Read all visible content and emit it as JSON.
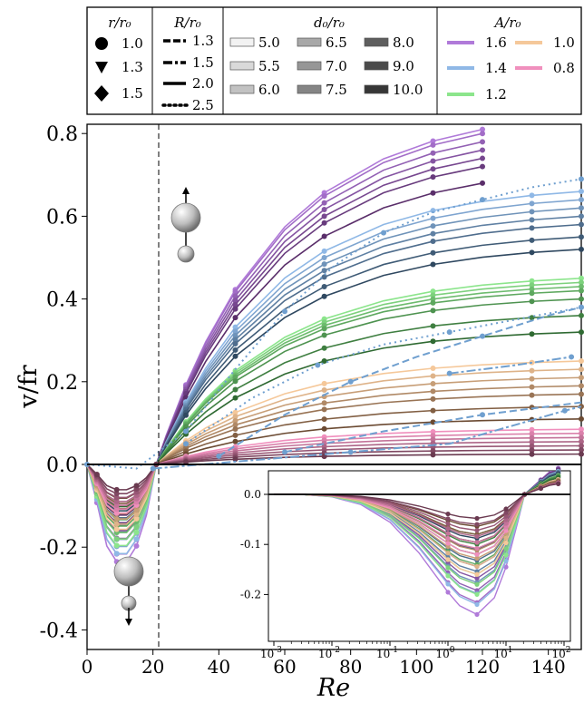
{
  "chart_data": {
    "type": "line",
    "xlabel": "Re",
    "ylabel": "v/fr",
    "xlim": [
      0,
      150
    ],
    "ylim": [
      -0.45,
      0.82
    ],
    "x_ticks": [
      0,
      20,
      40,
      60,
      80,
      100,
      120,
      140
    ],
    "y_ticks": [
      -0.4,
      -0.2,
      0.0,
      0.2,
      0.4,
      0.6,
      0.8
    ],
    "y_tick_labels": [
      "-0.4",
      "-0.2",
      "0.0",
      "0.2",
      "0.4",
      "0.6",
      "0.8"
    ],
    "critical_re": 21,
    "groups": [
      {
        "name": "1.6",
        "color": "#b07ad9",
        "dark": "#5a2e6a",
        "peaks": [
          0.81,
          0.8,
          0.78,
          0.76,
          0.74,
          0.72,
          0.68
        ],
        "neg": -0.24
      },
      {
        "name": "1.4",
        "color": "#8fb8e6",
        "dark": "#2f4860",
        "peaks": [
          0.66,
          0.64,
          0.62,
          0.6,
          0.58,
          0.55,
          0.52
        ],
        "neg": -0.22
      },
      {
        "name": "1.2",
        "color": "#8ce58c",
        "dark": "#2f6a32",
        "peaks": [
          0.45,
          0.44,
          0.43,
          0.42,
          0.4,
          0.36,
          0.32
        ],
        "neg": -0.2
      },
      {
        "name": "1.0",
        "color": "#f5c89a",
        "dark": "#6b4a32",
        "peaks": [
          0.25,
          0.23,
          0.21,
          0.19,
          0.17,
          0.14,
          0.11
        ],
        "neg": -0.16
      },
      {
        "name": "0.8",
        "color": "#f08fbd",
        "dark": "#6a3a50",
        "peaks": [
          0.085,
          0.075,
          0.065,
          0.055,
          0.045,
          0.035,
          0.025
        ],
        "neg": -0.12
      }
    ],
    "dotted_series": [
      {
        "color": "#6f9fcf",
        "x": [
          0,
          15,
          30,
          45,
          60,
          75,
          90,
          105,
          120,
          135,
          150
        ],
        "values": [
          0.0,
          -0.01,
          0.08,
          0.23,
          0.37,
          0.48,
          0.56,
          0.61,
          0.64,
          0.67,
          0.69
        ]
      },
      {
        "color": "#6f9fcf",
        "x": [
          30,
          50,
          70,
          90,
          110,
          130,
          150
        ],
        "values": [
          0.05,
          0.16,
          0.24,
          0.29,
          0.32,
          0.35,
          0.38
        ]
      }
    ],
    "dashed_series": [
      {
        "color": "#6f9fcf",
        "x": [
          40,
          60,
          80,
          100,
          120,
          140,
          150
        ],
        "values": [
          0.02,
          0.12,
          0.2,
          0.26,
          0.31,
          0.36,
          0.38
        ]
      },
      {
        "color": "#6f9fcf",
        "x": [
          60,
          90,
          120,
          150
        ],
        "values": [
          0.03,
          0.08,
          0.12,
          0.15
        ]
      }
    ],
    "dashdot_series": [
      {
        "color": "#6f9fcf",
        "x": [
          20,
          50,
          80,
          110,
          145,
          150
        ],
        "values": [
          -0.01,
          0.01,
          0.03,
          0.05,
          0.13,
          0.14
        ]
      },
      {
        "color": "#6f9fcf",
        "x": [
          110,
          130,
          147
        ],
        "values": [
          0.22,
          0.24,
          0.26
        ]
      }
    ],
    "inset": {
      "xlim_log10": [
        -3,
        2
      ],
      "ylim": [
        -0.26,
        0.03
      ],
      "x_tick_labels": [
        "10^-3",
        "10^-2",
        "10^-1",
        "10^0",
        "10^1",
        "10^2"
      ],
      "y_ticks": [
        0.0,
        -0.1,
        -0.2
      ],
      "y_tick_labels": [
        "0.0",
        "-0.1",
        "-0.2"
      ]
    }
  },
  "legend": {
    "r_title": "r/r₀",
    "r_items": [
      {
        "marker": "circle",
        "label": "1.0"
      },
      {
        "marker": "triangle-down",
        "label": "1.3"
      },
      {
        "marker": "diamond",
        "label": "1.5"
      }
    ],
    "R_title": "R/r₀",
    "R_items": [
      {
        "style": "dashed",
        "label": "1.3"
      },
      {
        "style": "dashdot",
        "label": "1.5"
      },
      {
        "style": "solid",
        "label": "2.0"
      },
      {
        "style": "dotted",
        "label": "2.5"
      }
    ],
    "d_title": "d₀/r₀",
    "d_items": [
      {
        "shade": "#f2f2f2",
        "label": "5.0"
      },
      {
        "shade": "#d9d9d9",
        "label": "5.5"
      },
      {
        "shade": "#c2c2c2",
        "label": "6.0"
      },
      {
        "shade": "#a8a8a8",
        "label": "6.5"
      },
      {
        "shade": "#969696",
        "label": "7.0"
      },
      {
        "shade": "#858585",
        "label": "7.5"
      },
      {
        "shade": "#5e5e5e",
        "label": "8.0"
      },
      {
        "shade": "#4a4a4a",
        "label": "9.0"
      },
      {
        "shade": "#363636",
        "label": "10.0"
      }
    ],
    "A_title": "A/r₀",
    "A_items": [
      {
        "color": "#b07ad9",
        "label": "1.6"
      },
      {
        "color": "#f5c89a",
        "label": "1.0"
      },
      {
        "color": "#8fb8e6",
        "label": "1.4"
      },
      {
        "color": "#f08fbd",
        "label": "0.8"
      },
      {
        "color": "#8ce58c",
        "label": "1.2"
      }
    ]
  }
}
